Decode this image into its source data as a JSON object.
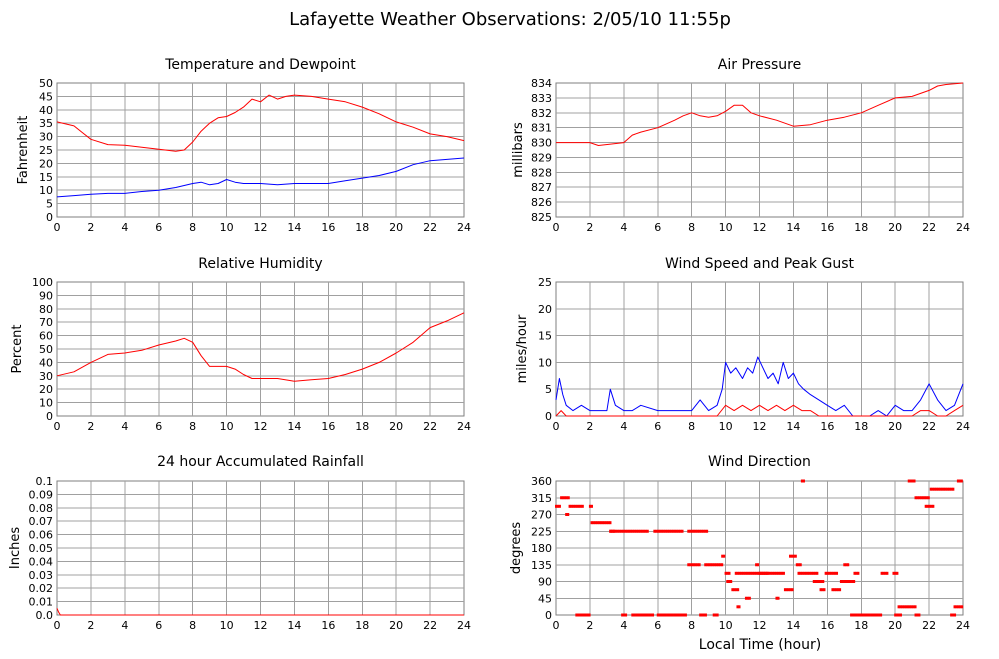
{
  "page": {
    "title": "Lafayette Weather Observations: 2/05/10 11:55p",
    "x_axis_label": "Local Time (hour)"
  },
  "colors": {
    "red": "#ff0000",
    "blue": "#0000ff",
    "grid": "#a0a0a0",
    "frame": "#7f7f7f"
  },
  "chart_data": [
    {
      "id": "temp",
      "type": "line",
      "title": "Temperature and Dewpoint",
      "xlabel": "",
      "ylabel": "Fahrenheit",
      "xlim": [
        0,
        24
      ],
      "ylim": [
        0,
        50
      ],
      "xticks": [
        0,
        2,
        4,
        6,
        8,
        10,
        12,
        14,
        16,
        18,
        20,
        22,
        24
      ],
      "yticks": [
        0,
        5,
        10,
        15,
        20,
        25,
        30,
        35,
        40,
        45,
        50
      ],
      "grid": true,
      "series": [
        {
          "color": "#ff0000",
          "x": [
            0,
            1,
            1.5,
            2,
            3,
            4,
            5,
            6,
            7,
            7.5,
            8,
            8.5,
            9,
            9.5,
            10,
            10.5,
            11,
            11.5,
            12,
            12.5,
            13,
            13.5,
            14,
            15,
            16,
            17,
            18,
            19,
            20,
            21,
            22,
            23,
            24
          ],
          "y": [
            35.5,
            34,
            31.5,
            29,
            27,
            26.8,
            26,
            25.3,
            24.5,
            25,
            28,
            32,
            35,
            37,
            37.5,
            39,
            41,
            44,
            43,
            45.5,
            44,
            45,
            45.5,
            45,
            44,
            43,
            41,
            38.5,
            35.5,
            33.5,
            31,
            30,
            28.5
          ]
        },
        {
          "color": "#0000ff",
          "x": [
            0,
            1,
            2,
            3,
            4,
            5,
            6,
            7,
            8,
            8.5,
            9,
            9.5,
            10,
            10.5,
            11,
            12,
            13,
            14,
            15,
            16,
            17,
            18,
            19,
            20,
            21,
            22,
            23,
            24
          ],
          "y": [
            7.5,
            8,
            8.5,
            8.8,
            8.8,
            9.5,
            10,
            11,
            12.5,
            13,
            12,
            12.5,
            14,
            13,
            12.5,
            12.5,
            12,
            12.5,
            12.5,
            12.5,
            13.5,
            14.5,
            15.5,
            17,
            19.5,
            21,
            21.5,
            22
          ]
        }
      ]
    },
    {
      "id": "pressure",
      "type": "line",
      "title": "Air Pressure",
      "xlabel": "",
      "ylabel": "millibars",
      "xlim": [
        0,
        24
      ],
      "ylim": [
        825,
        834
      ],
      "xticks": [
        0,
        2,
        4,
        6,
        8,
        10,
        12,
        14,
        16,
        18,
        20,
        22,
        24
      ],
      "yticks": [
        825,
        826,
        827,
        828,
        829,
        830,
        831,
        832,
        833,
        834
      ],
      "grid": true,
      "series": [
        {
          "color": "#ff0000",
          "x": [
            0,
            2,
            2.5,
            4,
            4.5,
            5,
            6,
            7,
            7.5,
            8,
            8.5,
            9,
            9.5,
            10,
            10.5,
            11,
            11.5,
            12,
            13,
            14,
            15,
            16,
            17,
            18,
            19,
            20,
            21,
            22,
            22.5,
            23,
            24
          ],
          "y": [
            830,
            830,
            829.8,
            830,
            830.5,
            830.7,
            831,
            831.5,
            831.8,
            832,
            831.8,
            831.7,
            831.8,
            832.1,
            832.5,
            832.5,
            832,
            831.8,
            831.5,
            831.1,
            831.2,
            831.5,
            831.7,
            832,
            832.5,
            833,
            833.1,
            833.5,
            833.8,
            833.9,
            834
          ]
        }
      ]
    },
    {
      "id": "humidity",
      "type": "line",
      "title": "Relative Humidity",
      "xlabel": "",
      "ylabel": "Percent",
      "xlim": [
        0,
        24
      ],
      "ylim": [
        0,
        100
      ],
      "xticks": [
        0,
        2,
        4,
        6,
        8,
        10,
        12,
        14,
        16,
        18,
        20,
        22,
        24
      ],
      "yticks": [
        0,
        10,
        20,
        30,
        40,
        50,
        60,
        70,
        80,
        90,
        100
      ],
      "grid": true,
      "series": [
        {
          "color": "#ff0000",
          "x": [
            0,
            1,
            2,
            3,
            4,
            5,
            6,
            7,
            7.5,
            8,
            8.5,
            9,
            9.5,
            10,
            10.5,
            11,
            11.5,
            12,
            13,
            14,
            15,
            16,
            17,
            18,
            19,
            20,
            21,
            22,
            23,
            24
          ],
          "y": [
            30,
            33,
            40,
            46,
            47,
            49,
            53,
            56,
            58,
            55,
            45,
            37,
            37,
            37,
            35,
            31,
            28,
            28,
            28,
            26,
            27,
            28,
            31,
            35,
            40,
            47,
            55,
            66,
            71,
            77
          ]
        }
      ]
    },
    {
      "id": "wind",
      "type": "line",
      "title": "Wind Speed and Peak Gust",
      "xlabel": "",
      "ylabel": "miles/hour",
      "xlim": [
        0,
        24
      ],
      "ylim": [
        0,
        25
      ],
      "xticks": [
        0,
        2,
        4,
        6,
        8,
        10,
        12,
        14,
        16,
        18,
        20,
        22,
        24
      ],
      "yticks": [
        0,
        5,
        10,
        15,
        20,
        25
      ],
      "grid": true,
      "series": [
        {
          "color": "#0000ff",
          "x": [
            0,
            0.2,
            0.4,
            0.6,
            1,
            1.5,
            2,
            2.5,
            3,
            3.2,
            3.5,
            4,
            4.5,
            5,
            6,
            7,
            8,
            8.5,
            9,
            9.5,
            9.8,
            10,
            10.3,
            10.6,
            11,
            11.3,
            11.6,
            11.9,
            12.2,
            12.5,
            12.8,
            13.1,
            13.4,
            13.7,
            14,
            14.3,
            14.6,
            15,
            15.5,
            16,
            16.5,
            17,
            17.5,
            18,
            18.5,
            19,
            19.5,
            20,
            20.5,
            21,
            21.5,
            22,
            22.5,
            23,
            23.5,
            24
          ],
          "y": [
            3,
            7,
            4,
            2,
            1,
            2,
            1,
            1,
            1,
            5,
            2,
            1,
            1,
            2,
            1,
            1,
            1,
            3,
            1,
            2,
            5,
            10,
            8,
            9,
            7,
            9,
            8,
            11,
            9,
            7,
            8,
            6,
            10,
            7,
            8,
            6,
            5,
            4,
            3,
            2,
            1,
            2,
            0,
            0,
            0,
            1,
            0,
            2,
            1,
            1,
            3,
            6,
            3,
            1,
            2,
            6
          ]
        },
        {
          "color": "#ff0000",
          "x": [
            0,
            0.3,
            0.6,
            1,
            2,
            3,
            4,
            5,
            6,
            7,
            8,
            9,
            9.5,
            10,
            10.5,
            11,
            11.5,
            12,
            12.5,
            13,
            13.5,
            14,
            14.5,
            15,
            15.5,
            16,
            17,
            18,
            19,
            20,
            21,
            21.5,
            22,
            22.5,
            23,
            23.5,
            24
          ],
          "y": [
            0,
            1,
            0,
            0,
            0,
            0,
            0,
            0,
            0,
            0,
            0,
            0,
            0,
            2,
            1,
            2,
            1,
            2,
            1,
            2,
            1,
            2,
            1,
            1,
            0,
            0,
            0,
            0,
            0,
            0,
            0,
            1,
            1,
            0,
            0,
            1,
            2
          ]
        }
      ]
    },
    {
      "id": "rain",
      "type": "line",
      "title": "24 hour Accumulated Rainfall",
      "xlabel": "",
      "ylabel": "Inches",
      "xlim": [
        0,
        24
      ],
      "ylim": [
        0,
        0.1
      ],
      "xticks": [
        0,
        2,
        4,
        6,
        8,
        10,
        12,
        14,
        16,
        18,
        20,
        22,
        24
      ],
      "yticks": [
        0.0,
        0.01,
        0.02,
        0.03,
        0.04,
        0.05,
        0.06,
        0.07,
        0.08,
        0.09,
        0.1
      ],
      "ytick_labels": [
        "0.0",
        "0.01",
        "0.02",
        "0.03",
        "0.04",
        "0.05",
        "0.06",
        "0.07",
        "0.08",
        "0.09",
        "0.1"
      ],
      "grid": true,
      "series": [
        {
          "color": "#ff0000",
          "x": [
            0,
            0.1,
            0.2,
            24
          ],
          "y": [
            0.005,
            0.002,
            0,
            0
          ]
        }
      ]
    },
    {
      "id": "direction",
      "type": "scatter",
      "title": "Wind Direction",
      "xlabel": "Local Time (hour)",
      "ylabel": "degrees",
      "xlim": [
        0,
        24
      ],
      "ylim": [
        0,
        360
      ],
      "xticks": [
        0,
        2,
        4,
        6,
        8,
        10,
        12,
        14,
        16,
        18,
        20,
        22,
        24
      ],
      "yticks": [
        0,
        45,
        90,
        135,
        180,
        225,
        270,
        315,
        360
      ],
      "grid": true,
      "series": [
        {
          "color": "#ff0000",
          "segments": [
            {
              "from": 0.0,
              "to": 0.3,
              "y": 292
            },
            {
              "from": 0.3,
              "to": 0.8,
              "y": 315
            },
            {
              "from": 0.6,
              "to": 0.8,
              "y": 270
            },
            {
              "from": 0.8,
              "to": 1.6,
              "y": 292
            },
            {
              "from": 1.2,
              "to": 2.0,
              "y": 0
            },
            {
              "from": 2.0,
              "to": 2.2,
              "y": 292
            },
            {
              "from": 2.1,
              "to": 3.2,
              "y": 248
            },
            {
              "from": 3.2,
              "to": 3.5,
              "y": 225
            },
            {
              "from": 3.2,
              "to": 5.5,
              "y": 225
            },
            {
              "from": 3.9,
              "to": 4.2,
              "y": 0
            },
            {
              "from": 4.5,
              "to": 5.8,
              "y": 0
            },
            {
              "from": 5.8,
              "to": 7.5,
              "y": 225
            },
            {
              "from": 6.0,
              "to": 7.7,
              "y": 0
            },
            {
              "from": 7.8,
              "to": 9.0,
              "y": 225
            },
            {
              "from": 7.8,
              "to": 8.5,
              "y": 135
            },
            {
              "from": 8.5,
              "to": 8.9,
              "y": 0
            },
            {
              "from": 8.8,
              "to": 9.8,
              "y": 135
            },
            {
              "from": 9.3,
              "to": 9.6,
              "y": 0
            },
            {
              "from": 9.8,
              "to": 10.0,
              "y": 158
            },
            {
              "from": 10.0,
              "to": 10.3,
              "y": 112
            },
            {
              "from": 10.1,
              "to": 10.4,
              "y": 90
            },
            {
              "from": 10.4,
              "to": 10.8,
              "y": 68
            },
            {
              "from": 10.6,
              "to": 12.5,
              "y": 112
            },
            {
              "from": 10.7,
              "to": 10.9,
              "y": 22
            },
            {
              "from": 11.2,
              "to": 11.5,
              "y": 45
            },
            {
              "from": 11.8,
              "to": 12.0,
              "y": 135
            },
            {
              "from": 12.0,
              "to": 13.5,
              "y": 112
            },
            {
              "from": 13.0,
              "to": 13.2,
              "y": 45
            },
            {
              "from": 13.5,
              "to": 14.0,
              "y": 68
            },
            {
              "from": 13.8,
              "to": 14.2,
              "y": 158
            },
            {
              "from": 14.2,
              "to": 14.5,
              "y": 135
            },
            {
              "from": 14.5,
              "to": 14.7,
              "y": 360
            },
            {
              "from": 14.3,
              "to": 15.5,
              "y": 112
            },
            {
              "from": 15.2,
              "to": 15.8,
              "y": 90
            },
            {
              "from": 15.6,
              "to": 15.9,
              "y": 68
            },
            {
              "from": 15.9,
              "to": 16.6,
              "y": 112
            },
            {
              "from": 16.3,
              "to": 16.8,
              "y": 68
            },
            {
              "from": 16.8,
              "to": 17.6,
              "y": 90
            },
            {
              "from": 17.0,
              "to": 17.3,
              "y": 135
            },
            {
              "from": 17.6,
              "to": 17.9,
              "y": 112
            },
            {
              "from": 17.4,
              "to": 19.2,
              "y": 0
            },
            {
              "from": 19.2,
              "to": 19.6,
              "y": 112
            },
            {
              "from": 19.9,
              "to": 20.2,
              "y": 112
            },
            {
              "from": 20.0,
              "to": 20.4,
              "y": 0
            },
            {
              "from": 20.2,
              "to": 21.2,
              "y": 22
            },
            {
              "from": 20.8,
              "to": 21.2,
              "y": 360
            },
            {
              "from": 21.2,
              "to": 21.5,
              "y": 0
            },
            {
              "from": 21.2,
              "to": 22.0,
              "y": 315
            },
            {
              "from": 21.8,
              "to": 22.3,
              "y": 292
            },
            {
              "from": 22.1,
              "to": 23.5,
              "y": 338
            },
            {
              "from": 23.3,
              "to": 23.6,
              "y": 0
            },
            {
              "from": 23.5,
              "to": 24.0,
              "y": 22
            },
            {
              "from": 23.7,
              "to": 24.0,
              "y": 360
            }
          ]
        }
      ]
    }
  ]
}
